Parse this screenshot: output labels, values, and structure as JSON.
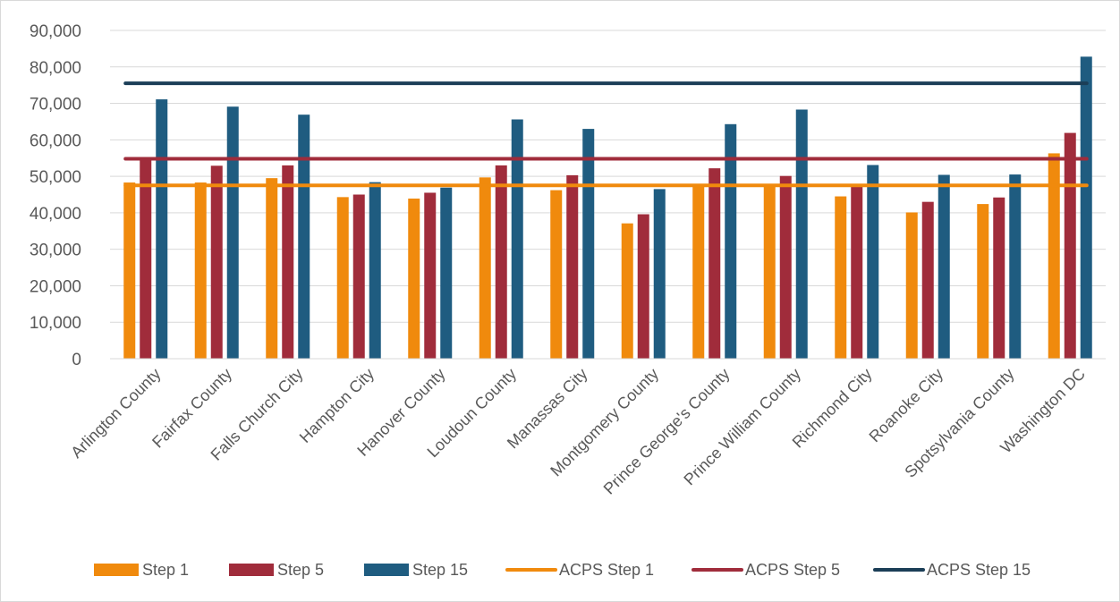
{
  "chart_data": {
    "type": "bar",
    "title": "",
    "xlabel": "",
    "ylabel": "",
    "ylim": [
      0,
      90000
    ],
    "yticks": [
      0,
      10000,
      20000,
      30000,
      40000,
      50000,
      60000,
      70000,
      80000,
      90000
    ],
    "ytick_labels": [
      "0",
      "10,000",
      "20,000",
      "30,000",
      "40,000",
      "50,000",
      "60,000",
      "70,000",
      "80,000",
      "90,000"
    ],
    "grid": true,
    "legend_position": "bottom",
    "categories": [
      "Arlington County",
      "Fairfax County",
      "Falls Church City",
      "Hampton City",
      "Hanover County",
      "Loudoun County",
      "Manassas City",
      "Montgomery County",
      "Prince George's County",
      "Prince William County",
      "Richmond City",
      "Roanoke City",
      "Spotsylvania County",
      "Washington DC"
    ],
    "series": [
      {
        "name": "Step 1",
        "kind": "bar",
        "color": "#f08a0d",
        "values": [
          48300,
          48300,
          49500,
          44300,
          43900,
          49700,
          46200,
          37100,
          47600,
          47600,
          44500,
          40100,
          42400,
          56300
        ]
      },
      {
        "name": "Step 5",
        "kind": "bar",
        "color": "#a02c3b",
        "values": [
          55000,
          52900,
          53000,
          45000,
          45500,
          53000,
          50300,
          39600,
          52200,
          50100,
          47400,
          43000,
          44200,
          61900
        ]
      },
      {
        "name": "Step 15",
        "kind": "bar",
        "color": "#1f5c80",
        "values": [
          71100,
          69100,
          66900,
          48400,
          46900,
          65600,
          63000,
          46500,
          64300,
          68300,
          53100,
          50400,
          50500,
          82800
        ]
      },
      {
        "name": "ACPS Step 1",
        "kind": "line",
        "color": "#f08a0d",
        "value": 47500
      },
      {
        "name": "ACPS Step 5",
        "kind": "line",
        "color": "#a02c3b",
        "value": 54800
      },
      {
        "name": "ACPS Step 15",
        "kind": "line",
        "color": "#1b3e57",
        "value": 75500
      }
    ]
  }
}
